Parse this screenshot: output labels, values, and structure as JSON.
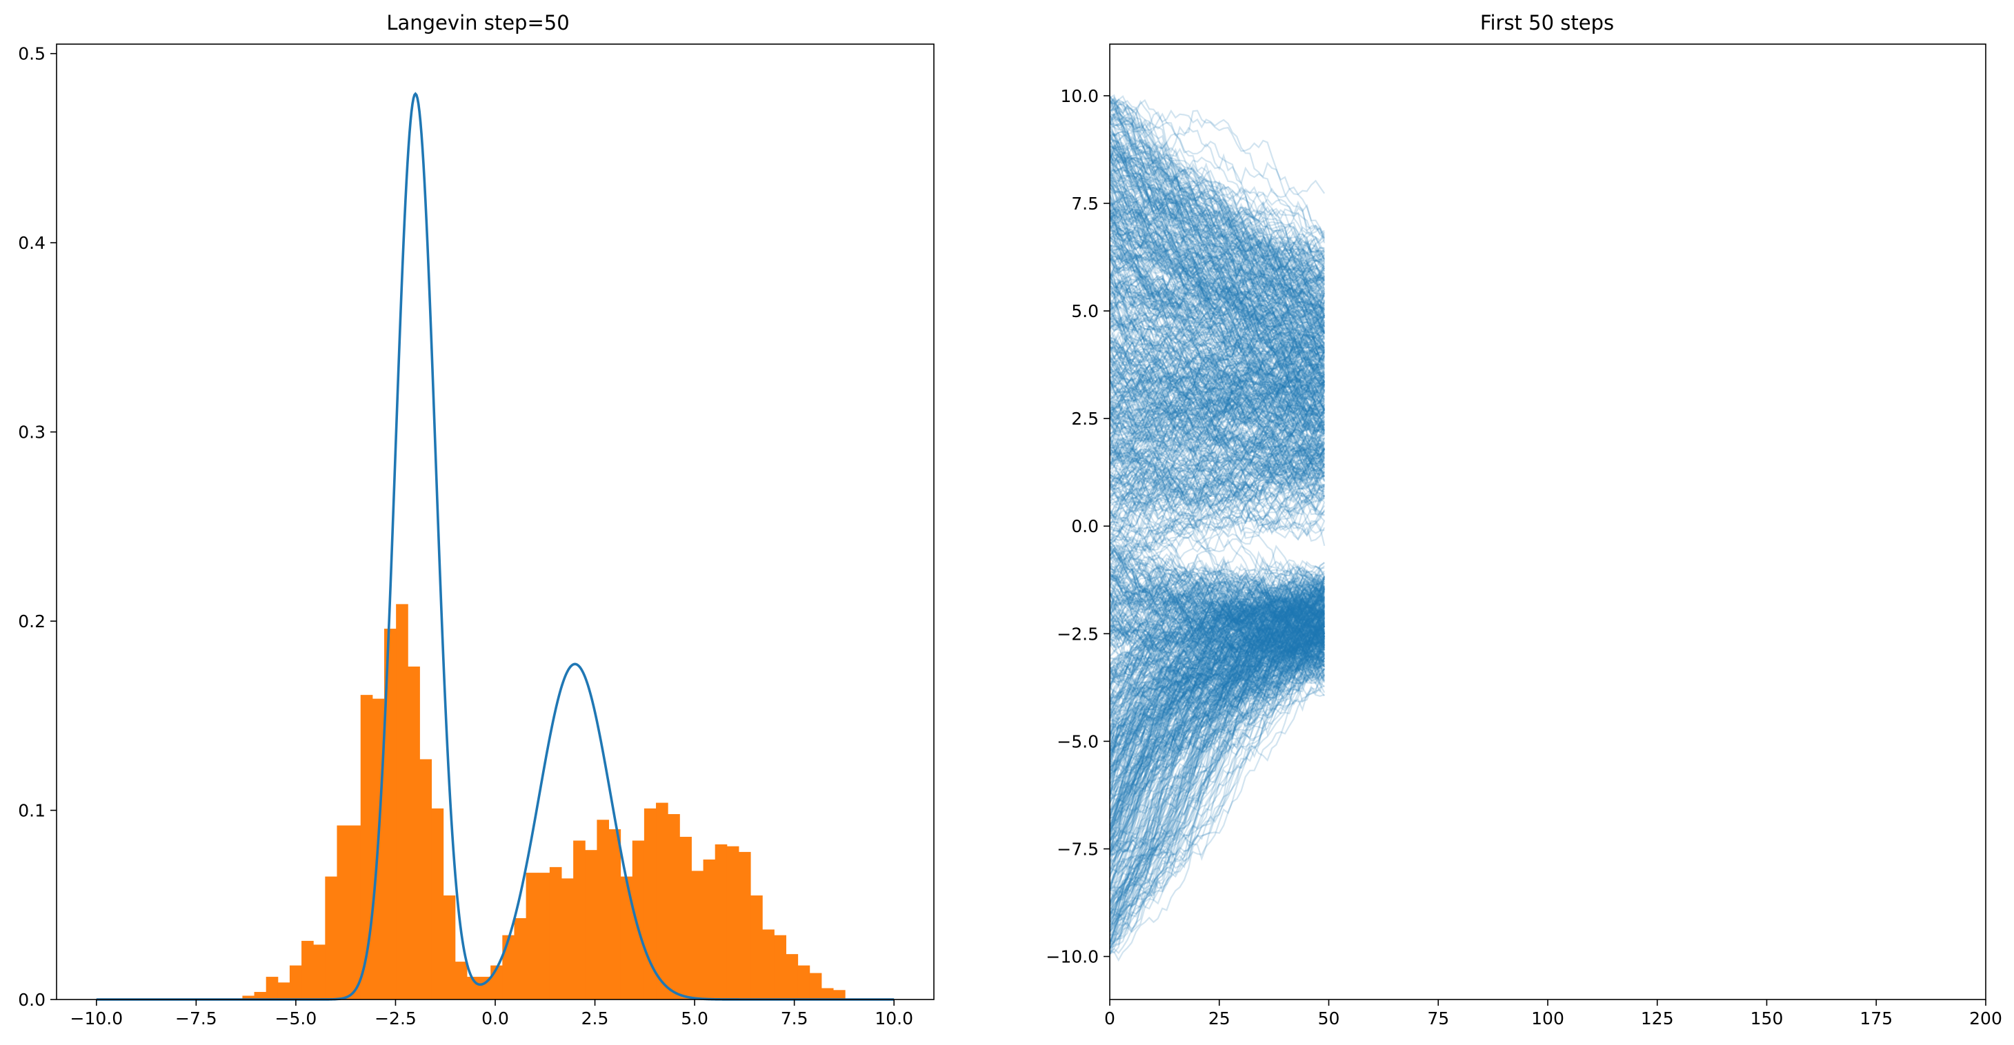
{
  "chart_data": [
    {
      "type": "bar",
      "title": "Langevin step=50",
      "xlim": [
        -11.0,
        11.0
      ],
      "ylim": [
        0,
        0.505
      ],
      "xticks": [
        -10.0,
        -7.5,
        -5.0,
        -2.5,
        0.0,
        2.5,
        5.0,
        7.5,
        10.0
      ],
      "xtick_labels": [
        "−10.0",
        "−7.5",
        "−5.0",
        "−2.5",
        "0.0",
        "2.5",
        "5.0",
        "7.5",
        "10.0"
      ],
      "yticks": [
        0.0,
        0.1,
        0.2,
        0.3,
        0.4,
        0.5
      ],
      "ytick_labels": [
        "0.0",
        "0.1",
        "0.2",
        "0.3",
        "0.4",
        "0.5"
      ],
      "grid": false,
      "histogram": {
        "color": "#ff7f0e",
        "bin_start": -6.34,
        "bin_width": 0.2963,
        "heights": [
          0.002,
          0.004,
          0.012,
          0.009,
          0.018,
          0.031,
          0.029,
          0.065,
          0.092,
          0.092,
          0.161,
          0.159,
          0.196,
          0.209,
          0.176,
          0.127,
          0.101,
          0.055,
          0.02,
          0.012,
          0.012,
          0.018,
          0.034,
          0.043,
          0.067,
          0.067,
          0.07,
          0.064,
          0.084,
          0.079,
          0.095,
          0.09,
          0.065,
          0.084,
          0.101,
          0.104,
          0.098,
          0.086,
          0.068,
          0.074,
          0.082,
          0.081,
          0.078,
          0.055,
          0.037,
          0.034,
          0.024,
          0.018,
          0.014,
          0.006,
          0.005
        ]
      },
      "density_curve": {
        "color": "#1f77b4",
        "components": [
          {
            "weight": 0.6,
            "mean": -2.0,
            "sd": 0.5
          },
          {
            "weight": 0.4,
            "mean": 2.0,
            "sd": 0.9
          }
        ],
        "x_range": [
          -10.0,
          10.0
        ]
      }
    },
    {
      "type": "line",
      "title": "First 50 steps",
      "xlim": [
        0,
        200
      ],
      "ylim": [
        -11.0,
        11.2
      ],
      "xticks": [
        0,
        25,
        50,
        75,
        100,
        125,
        150,
        175,
        200
      ],
      "xtick_labels": [
        "0",
        "25",
        "50",
        "75",
        "100",
        "125",
        "150",
        "175",
        "200"
      ],
      "yticks": [
        -10.0,
        -7.5,
        -5.0,
        -2.5,
        0.0,
        2.5,
        5.0,
        7.5,
        10.0
      ],
      "ytick_labels": [
        "−10.0",
        "−7.5",
        "−5.0",
        "−2.5",
        "0.0",
        "2.5",
        "5.0",
        "7.5",
        "10.0"
      ],
      "grid": false,
      "trajectories": {
        "color": "#1f77b4",
        "alpha": 0.2,
        "count": 1000,
        "steps": 50,
        "x0_range": [
          -10.0,
          10.0
        ],
        "final_range": [
          -7.0,
          8.7
        ]
      }
    }
  ]
}
